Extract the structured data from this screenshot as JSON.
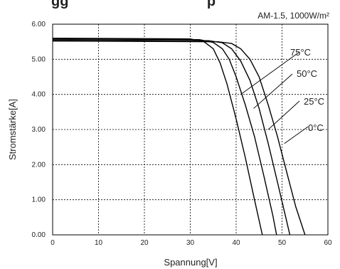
{
  "heading_fragment": "gg                                   p",
  "colors": {
    "heading": "#1aa05a",
    "curve": "#000000",
    "grid": "#000000"
  },
  "chart_data": {
    "type": "line",
    "title": "",
    "condition_label": "AM-1.5, 1000W/m²",
    "xlabel": "Spannung[V]",
    "ylabel": "Stromstärke[A]",
    "xlim": [
      0,
      60
    ],
    "ylim": [
      0,
      6
    ],
    "x_ticks": [
      "0",
      "10",
      "20",
      "30",
      "40",
      "50",
      "60"
    ],
    "y_ticks": [
      "0.00",
      "1.00",
      "2.00",
      "3.00",
      "4.00",
      "5.00",
      "6.00"
    ],
    "grid": true,
    "series": [
      {
        "name": "75°C",
        "voc": 45.7,
        "isc": 5.6,
        "knee": 31.0,
        "points": [
          [
            0,
            5.6
          ],
          [
            30,
            5.58
          ],
          [
            33,
            5.5
          ],
          [
            35,
            5.3
          ],
          [
            36.5,
            4.9
          ],
          [
            38,
            4.3
          ],
          [
            40,
            3.3
          ],
          [
            42,
            2.2
          ],
          [
            44,
            1.0
          ],
          [
            45.7,
            0
          ]
        ]
      },
      {
        "name": "50°C",
        "voc": 48.8,
        "isc": 5.58,
        "knee": 33.5,
        "points": [
          [
            0,
            5.58
          ],
          [
            32,
            5.56
          ],
          [
            35,
            5.48
          ],
          [
            37,
            5.3
          ],
          [
            38.5,
            5.0
          ],
          [
            40,
            4.5
          ],
          [
            42,
            3.7
          ],
          [
            44,
            2.8
          ],
          [
            46,
            1.7
          ],
          [
            48,
            0.55
          ],
          [
            48.8,
            0
          ]
        ]
      },
      {
        "name": "25°C",
        "voc": 51.7,
        "isc": 5.55,
        "knee": 35.0,
        "points": [
          [
            0,
            5.55
          ],
          [
            34,
            5.53
          ],
          [
            37,
            5.47
          ],
          [
            39,
            5.3
          ],
          [
            41,
            4.95
          ],
          [
            43,
            4.4
          ],
          [
            45,
            3.6
          ],
          [
            47,
            2.6
          ],
          [
            49,
            1.5
          ],
          [
            51,
            0.4
          ],
          [
            51.7,
            0
          ]
        ]
      },
      {
        "name": "0°C",
        "voc": 55.0,
        "isc": 5.52,
        "knee": 37.0,
        "points": [
          [
            0,
            5.52
          ],
          [
            36,
            5.5
          ],
          [
            39,
            5.45
          ],
          [
            41,
            5.3
          ],
          [
            43,
            5.0
          ],
          [
            45,
            4.5
          ],
          [
            47,
            3.7
          ],
          [
            49,
            2.8
          ],
          [
            51,
            1.8
          ],
          [
            53,
            0.8
          ],
          [
            55,
            0
          ]
        ]
      }
    ]
  }
}
